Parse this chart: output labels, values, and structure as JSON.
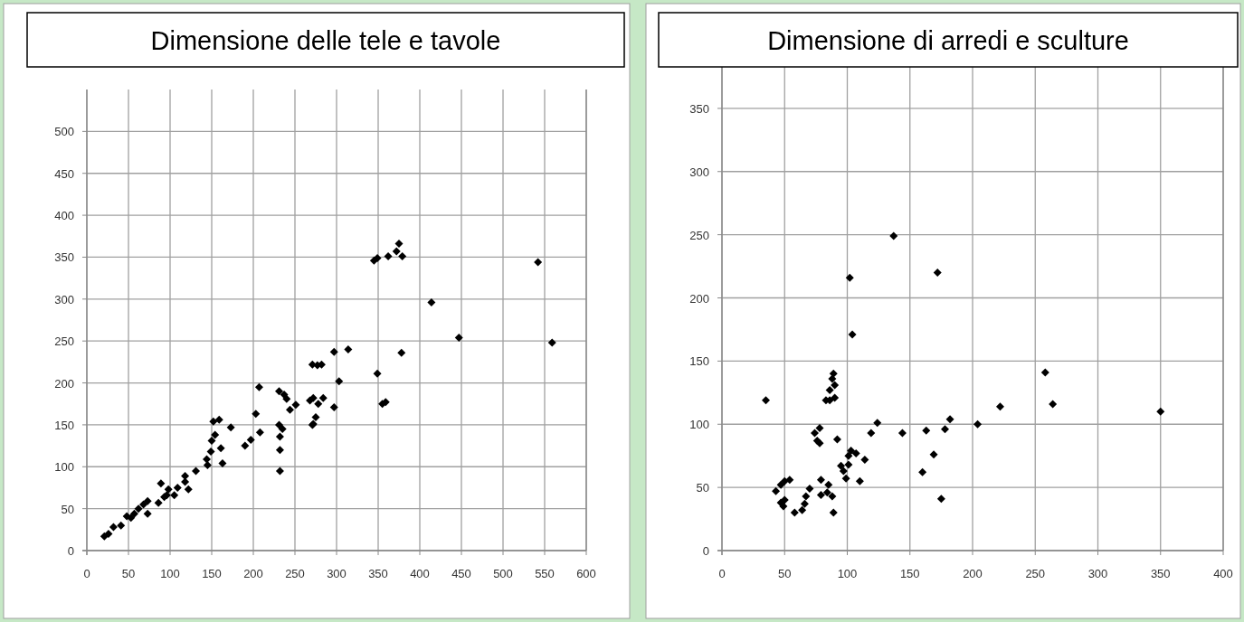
{
  "chart_data": [
    {
      "type": "scatter",
      "title": "Dimensione delle tele e tavole",
      "color": "#000000",
      "marker": "diamond",
      "grid": true,
      "x": [
        21,
        26,
        32,
        41,
        48,
        53,
        57,
        62,
        68,
        73,
        73,
        86,
        89,
        93,
        98,
        96,
        105,
        109,
        118,
        118,
        122,
        131,
        144,
        145,
        149,
        150,
        154,
        152,
        159,
        161,
        163,
        173,
        190,
        197,
        203,
        207,
        208,
        231,
        237,
        240,
        231,
        235,
        232,
        232,
        232,
        244,
        251,
        271,
        268,
        271,
        345,
        349,
        362,
        375,
        372,
        379,
        542,
        414,
        447,
        559,
        297,
        314,
        277,
        282,
        378,
        303,
        349,
        355,
        359,
        272,
        284,
        278,
        297,
        275,
        272
      ],
      "values": [
        17,
        20,
        28,
        30,
        41,
        39,
        44,
        50,
        55,
        59,
        44,
        57,
        80,
        64,
        73,
        66,
        66,
        75,
        89,
        82,
        73,
        95,
        109,
        102,
        118,
        131,
        138,
        154,
        156,
        122,
        104,
        147,
        125,
        132,
        163,
        195,
        141,
        190,
        186,
        181,
        150,
        145,
        136,
        120,
        95,
        168,
        174,
        222,
        179,
        150,
        346,
        349,
        351,
        366,
        357,
        351,
        344,
        296,
        254,
        248,
        237,
        240,
        221,
        222,
        236,
        202,
        211,
        175,
        177,
        182,
        182,
        175,
        171,
        159,
        151
      ],
      "xlim": [
        0,
        600
      ],
      "xticks": [
        0,
        50,
        100,
        150,
        200,
        250,
        300,
        350,
        400,
        450,
        500,
        550,
        600
      ],
      "ylim": [
        0,
        550
      ],
      "yticks": [
        0,
        50,
        100,
        150,
        200,
        250,
        300,
        350,
        400,
        450,
        500
      ]
    },
    {
      "type": "scatter",
      "title": "Dimensione di arredi e sculture",
      "color": "#000000",
      "marker": "diamond",
      "grid": true,
      "x": [
        35,
        43,
        47,
        49,
        50,
        47,
        50,
        54,
        58,
        64,
        66,
        67,
        70,
        74,
        78,
        76,
        78,
        79,
        79,
        85,
        88,
        89,
        84,
        83,
        86,
        90,
        90,
        86,
        89,
        88,
        92,
        95,
        97,
        99,
        101,
        103,
        107,
        101,
        102,
        104,
        110,
        114,
        119,
        124,
        137,
        144,
        160,
        163,
        169,
        172,
        175,
        178,
        182,
        204,
        222,
        258,
        264,
        350
      ],
      "values": [
        119,
        47,
        38,
        35,
        40,
        52,
        55,
        56,
        30,
        32,
        37,
        43,
        49,
        93,
        97,
        87,
        85,
        56,
        44,
        52,
        43,
        30,
        46,
        119,
        119,
        121,
        131,
        127,
        140,
        136,
        88,
        67,
        63,
        57,
        75,
        79,
        77,
        68,
        216,
        171,
        55,
        72,
        93,
        101,
        249,
        93,
        62,
        95,
        76,
        220,
        41,
        96,
        104,
        100,
        114,
        141,
        116,
        110
      ],
      "xlim": [
        0,
        400
      ],
      "xticks": [
        0,
        50,
        100,
        150,
        200,
        250,
        300,
        350,
        400
      ],
      "ylim": [
        0,
        400
      ],
      "yticks": [
        0,
        50,
        100,
        150,
        200,
        250,
        300,
        350
      ]
    }
  ]
}
